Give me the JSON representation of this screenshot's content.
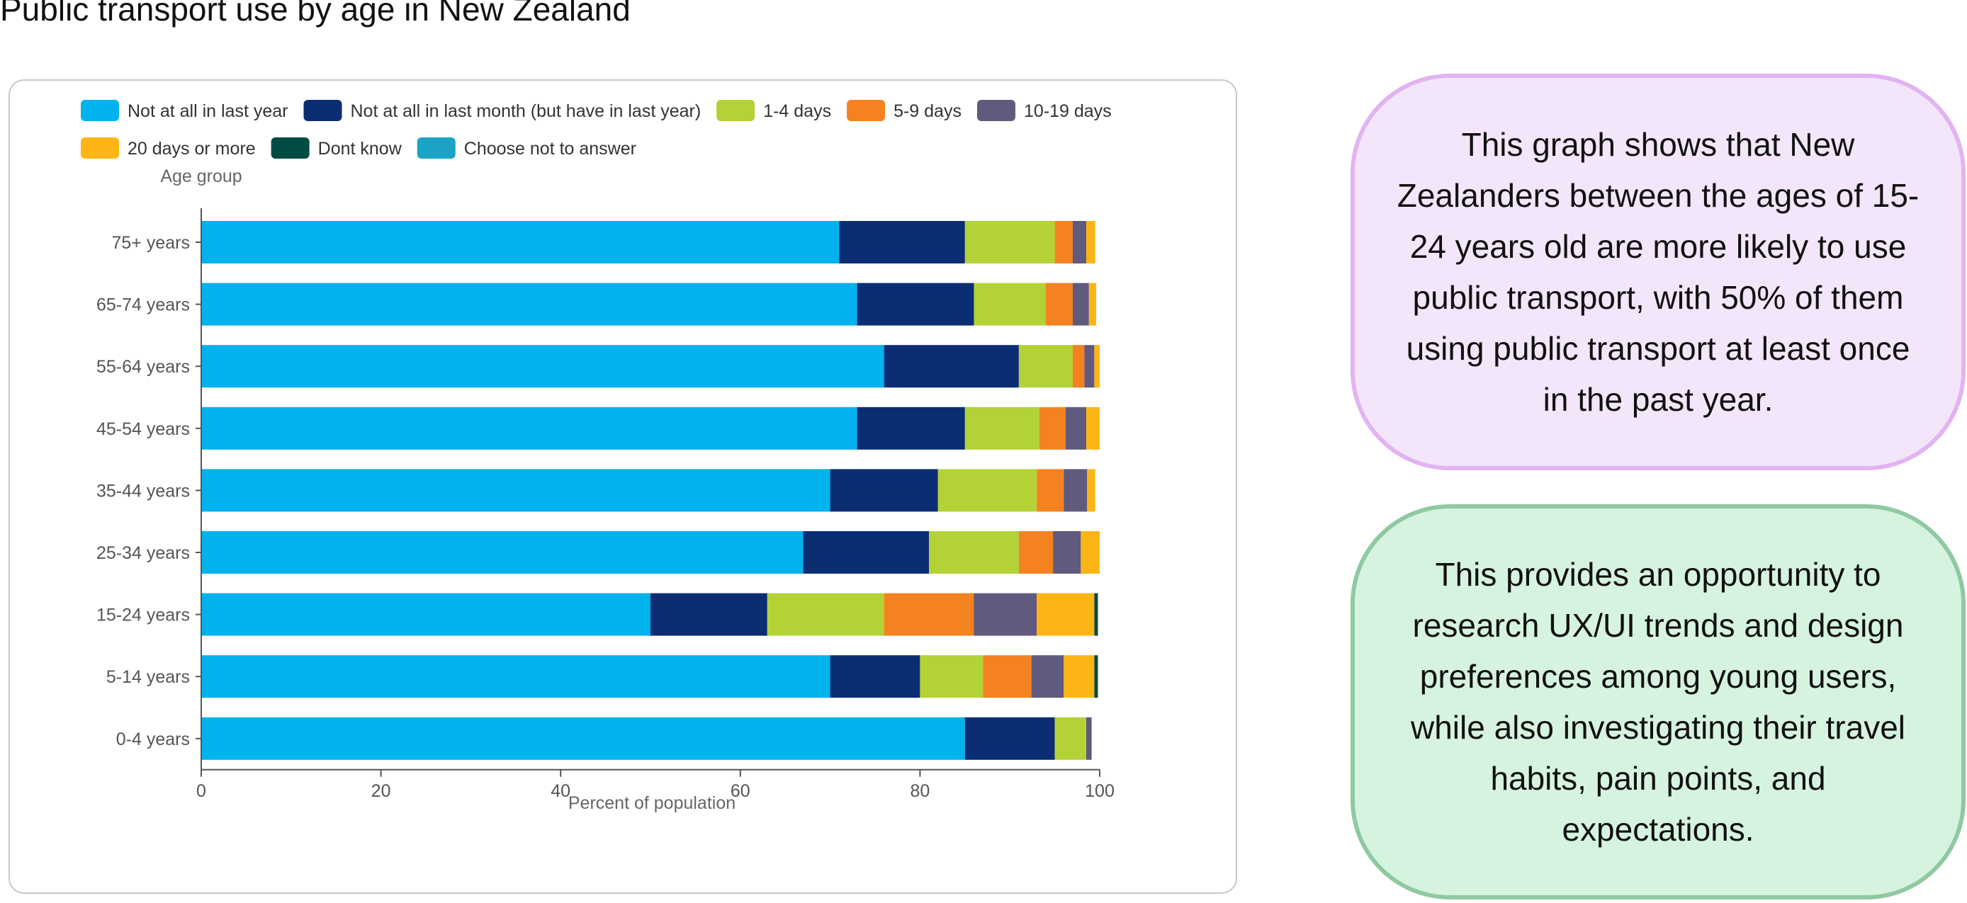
{
  "page_title": "Public transport use by age in New Zealand",
  "notes": {
    "purple": "This graph shows that New Zealanders between the ages of 15-24 years old are more likely to use public transport, with 50% of them using public transport at least once in the past year.",
    "green": "This provides an opportunity to research UX/UI trends and design preferences among young users, while also investigating their travel habits, pain points, and expectations."
  },
  "chart_data": {
    "type": "bar",
    "orientation": "horizontal",
    "stacked": true,
    "title": "",
    "xlabel": "Percent of population",
    "ylabel": "Age group",
    "xlim": [
      0,
      100
    ],
    "xticks": [
      0,
      20,
      40,
      60,
      80,
      100
    ],
    "grid": false,
    "legend_position": "top",
    "categories": [
      "75+ years",
      "65-74 years",
      "55-64 years",
      "45-54 years",
      "35-44 years",
      "25-34 years",
      "15-24 years",
      "5-14 years",
      "0-4 years"
    ],
    "series": [
      {
        "name": "Not at all in last year",
        "color": "#00b2ed",
        "values": [
          71,
          73,
          76,
          73,
          70,
          67,
          50,
          70,
          85
        ]
      },
      {
        "name": "Not at all in last month (but have in last year)",
        "color": "#0b2d73",
        "values": [
          14,
          13,
          15,
          12,
          12,
          14,
          13,
          10,
          10
        ]
      },
      {
        "name": "1-4 days",
        "color": "#b2d235",
        "values": [
          10,
          8,
          6,
          8.3,
          11,
          10,
          13,
          7,
          3.5
        ]
      },
      {
        "name": "5-9 days",
        "color": "#f58220",
        "values": [
          2,
          3,
          1.3,
          2.9,
          3,
          3.8,
          10,
          5.4,
          0
        ]
      },
      {
        "name": "10-19 days",
        "color": "#5f5a7e",
        "values": [
          1.5,
          1.8,
          1.1,
          2.3,
          2.6,
          3.1,
          7,
          3.6,
          0.6
        ]
      },
      {
        "name": "20 days or more",
        "color": "#fdb515",
        "values": [
          1,
          0.8,
          0.6,
          1.5,
          0.9,
          2.1,
          6.4,
          3.4,
          0
        ]
      },
      {
        "name": "Dont know",
        "color": "#004c45",
        "values": [
          0,
          0,
          0,
          0,
          0,
          0,
          0.4,
          0.4,
          0
        ]
      },
      {
        "name": "Choose not to answer",
        "color": "#1ba3c6",
        "values": [
          0,
          0,
          0,
          0,
          0,
          0,
          0,
          0,
          0
        ]
      }
    ]
  }
}
